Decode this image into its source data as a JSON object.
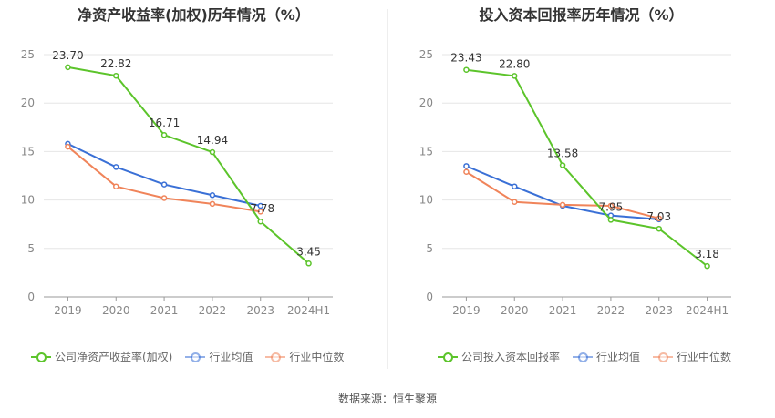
{
  "chart_data": [
    {
      "type": "line",
      "title": "净资产收益率(加权)历年情况（%）",
      "categories": [
        "2019",
        "2020",
        "2021",
        "2022",
        "2023",
        "2024H1"
      ],
      "ylim": [
        0,
        25
      ],
      "yticks": [
        0,
        5,
        10,
        15,
        20,
        25
      ],
      "grid": true,
      "legend_position": "bottom",
      "series": [
        {
          "name": "公司净资产收益率(加权)",
          "color": "#5cc42b",
          "values": [
            23.7,
            22.82,
            16.71,
            14.94,
            7.78,
            3.45
          ],
          "labels": [
            "23.70",
            "22.82",
            "16.71",
            "14.94",
            "7.78",
            "3.45"
          ]
        },
        {
          "name": "行业均值",
          "color": "#3a70d6",
          "values": [
            15.8,
            13.4,
            11.6,
            10.5,
            9.4,
            null
          ]
        },
        {
          "name": "行业中位数",
          "color": "#f0845a",
          "values": [
            15.5,
            11.4,
            10.2,
            9.6,
            8.8,
            null
          ]
        }
      ]
    },
    {
      "type": "line",
      "title": "投入资本回报率历年情况（%）",
      "categories": [
        "2019",
        "2020",
        "2021",
        "2022",
        "2023",
        "2024H1"
      ],
      "ylim": [
        0,
        25
      ],
      "yticks": [
        0,
        5,
        10,
        15,
        20,
        25
      ],
      "grid": true,
      "legend_position": "bottom",
      "series": [
        {
          "name": "公司投入资本回报率",
          "color": "#5cc42b",
          "values": [
            23.43,
            22.8,
            13.58,
            7.95,
            7.03,
            3.18
          ],
          "labels": [
            "23.43",
            "22.80",
            "13.58",
            "7.95",
            "7.03",
            "3.18"
          ]
        },
        {
          "name": "行业均值",
          "color": "#3a70d6",
          "values": [
            13.5,
            11.4,
            9.4,
            8.4,
            8.0,
            null
          ]
        },
        {
          "name": "行业中位数",
          "color": "#f0845a",
          "values": [
            12.9,
            9.8,
            9.5,
            9.4,
            8.1,
            null
          ]
        }
      ]
    }
  ],
  "source_text": "数据来源：恒生聚源"
}
